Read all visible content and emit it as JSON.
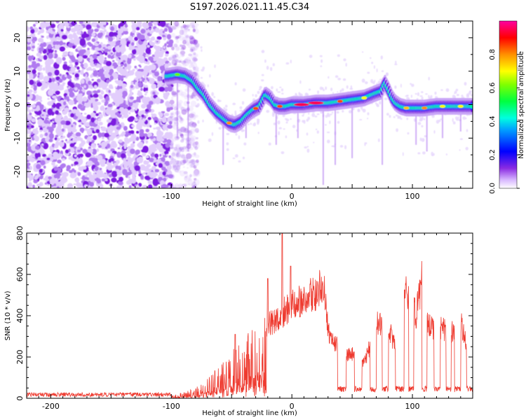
{
  "chart_data": [
    {
      "type": "heatmap",
      "title": "S197.2026.021.11.45.C34",
      "xlabel": "Height of straight line (km)",
      "ylabel": "Frequency (Hz)",
      "xlim": [
        -220,
        150
      ],
      "ylim": [
        -25,
        25
      ],
      "xticks": [
        -200,
        -100,
        0,
        100
      ],
      "yticks": [
        -20,
        -10,
        0,
        10,
        20
      ],
      "colorbar": {
        "label": "Normalized spectral amplitude",
        "range": [
          0,
          1
        ],
        "ticks": [
          "0.0",
          "0.2",
          "0.4",
          "0.6",
          "0.8"
        ],
        "tick_values": [
          0,
          0.2,
          0.4,
          0.6,
          0.8
        ]
      },
      "ridge": {
        "x": [
          -103,
          -95,
          -88,
          -82,
          -78,
          -73,
          -68,
          -62,
          -57,
          -52,
          -47,
          -42,
          -37,
          -32,
          -27,
          -22,
          -18,
          -14,
          -10,
          -5,
          0,
          10,
          20,
          30,
          40,
          50,
          60,
          70,
          74,
          77,
          80,
          83,
          86,
          90,
          95,
          100,
          110,
          120,
          130,
          140,
          150
        ],
        "y": [
          8.5,
          9,
          8.5,
          7,
          5,
          3,
          0,
          -2.5,
          -4,
          -5.5,
          -6,
          -5,
          -3,
          -1.5,
          -0.5,
          3,
          2,
          0,
          -0.5,
          -0.5,
          0,
          0,
          0.5,
          0.5,
          1,
          1.5,
          2,
          3.5,
          4,
          6.5,
          4.5,
          2,
          0.5,
          -0.5,
          -1,
          -1,
          -1,
          -0.5,
          -0.5,
          -0.5,
          -0.5
        ]
      }
    },
    {
      "type": "line",
      "xlabel": "Height of straight line (km)",
      "ylabel": "SNR (10 * v/v)",
      "xlim": [
        -220,
        150
      ],
      "ylim": [
        0,
        800
      ],
      "xticks": [
        -200,
        -100,
        0,
        100
      ],
      "yticks": [
        0,
        200,
        400,
        600,
        800
      ],
      "series": [
        {
          "name": "SNR",
          "color": "#ee3a2f",
          "envelope": {
            "x": [
              -220,
              -100,
              -90,
              -80,
              -72,
              -60,
              -50,
              -40,
              -30,
              -20,
              -15,
              -10,
              -5,
              0,
              10,
              20,
              27,
              30,
              33,
              38,
              45,
              50,
              55,
              60,
              65,
              70,
              75,
              80,
              85,
              90,
              95,
              100,
              103,
              108,
              113,
              118,
              125,
              130,
              135,
              140,
              145,
              150
            ],
            "y": [
              15,
              15,
              30,
              50,
              110,
              150,
              230,
              300,
              360,
              420,
              440,
              470,
              500,
              540,
              570,
              600,
              650,
              380,
              330,
              300,
              250,
              250,
              240,
              200,
              300,
              420,
              420,
              420,
              300,
              500,
              600,
              520,
              480,
              680,
              420,
              400,
              400,
              380,
              380,
              450,
              300,
              280
            ],
            "dips": [
              [
                38,
                45
              ],
              [
                52,
                58
              ],
              [
                65,
                70
              ],
              [
                75,
                80
              ],
              [
                86,
                93
              ],
              [
                97,
                101
              ],
              [
                108,
                112
              ],
              [
                118,
                123
              ],
              [
                128,
                132
              ],
              [
                135,
                140
              ],
              [
                145,
                150
              ]
            ],
            "dip_level": 30,
            "spikes": [
              [
                -47,
                310
              ],
              [
                -8,
                800
              ],
              [
                -1,
                640
              ],
              [
                -20,
                580
              ]
            ]
          }
        }
      ]
    }
  ]
}
